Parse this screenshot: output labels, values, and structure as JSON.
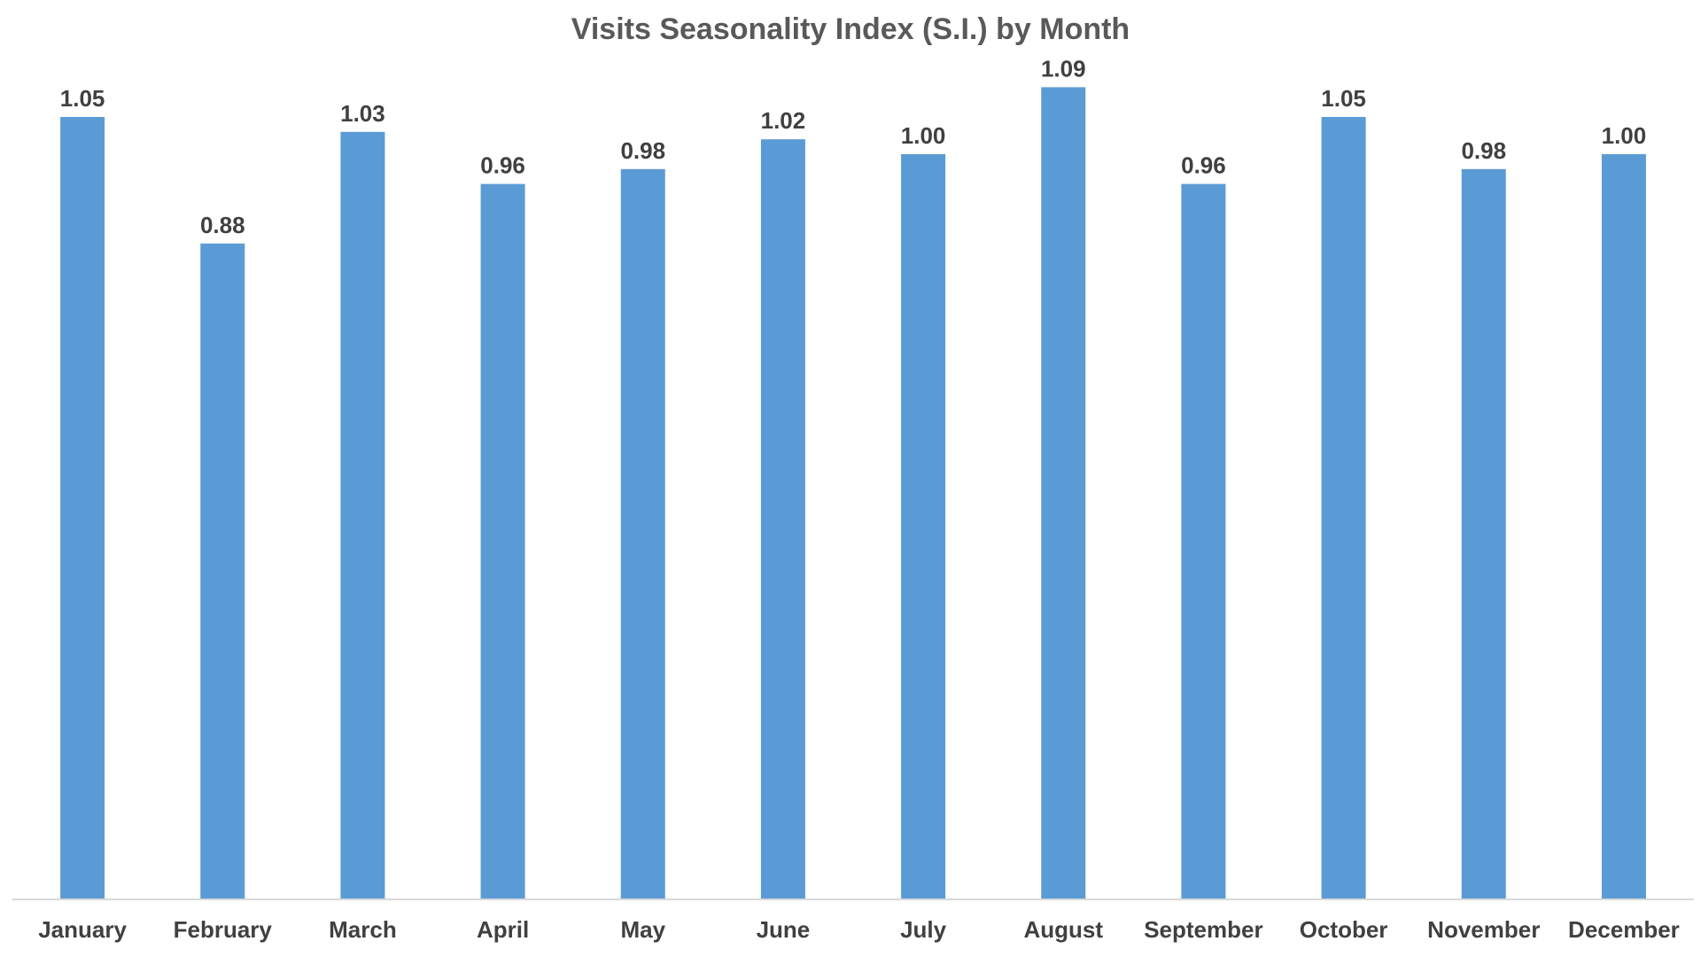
{
  "chart_data": {
    "type": "bar",
    "title": "Visits Seasonality Index (S.I.) by Month",
    "xlabel": "",
    "ylabel": "",
    "categories": [
      "January",
      "February",
      "March",
      "April",
      "May",
      "June",
      "July",
      "August",
      "September",
      "October",
      "November",
      "December"
    ],
    "values": [
      1.05,
      0.88,
      1.03,
      0.96,
      0.98,
      1.02,
      1.0,
      1.09,
      0.96,
      1.05,
      0.98,
      1.0
    ],
    "value_labels": [
      "1.05",
      "0.88",
      "1.03",
      "0.96",
      "0.98",
      "1.02",
      "1.00",
      "1.09",
      "0.96",
      "1.05",
      "0.98",
      "1.00"
    ],
    "ylim": [
      0,
      1.2
    ],
    "grid": false,
    "legend": "none",
    "colors": {
      "bar": "#5B9BD5",
      "title": "#595959",
      "label": "#404040",
      "axis": "#D9D9D9"
    }
  }
}
